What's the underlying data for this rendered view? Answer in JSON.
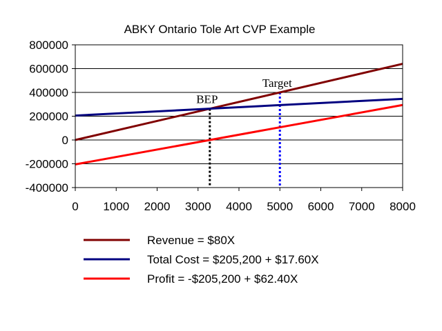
{
  "chart_data": {
    "type": "line",
    "title": "ABKY Ontario Tole Art CVP Example",
    "xlabel": "",
    "ylabel": "",
    "xlim": [
      0,
      8000
    ],
    "ylim": [
      -400000,
      800000
    ],
    "x_ticks": [
      0,
      1000,
      2000,
      3000,
      4000,
      5000,
      6000,
      7000,
      8000
    ],
    "y_ticks": [
      800000,
      600000,
      400000,
      200000,
      0,
      -200000,
      -400000
    ],
    "grid": "horizontal",
    "legend_position": "bottom",
    "series": [
      {
        "name": "Revenue = $80X",
        "color": "#800000",
        "x": [
          0,
          8000
        ],
        "y": [
          0,
          640000
        ]
      },
      {
        "name": "Total Cost = $205,200 + $17.60X",
        "color": "#000080",
        "x": [
          0,
          8000
        ],
        "y": [
          205200,
          346000
        ]
      },
      {
        "name": "Profit = -$205,200 + $62.40X",
        "color": "#ff0000",
        "x": [
          0,
          8000
        ],
        "y": [
          -205200,
          294000
        ]
      }
    ],
    "annotations": [
      {
        "label": "BEP",
        "x": 3288,
        "color": "#000000"
      },
      {
        "label": "Target",
        "x": 5000,
        "color": "#0000ff"
      }
    ]
  }
}
